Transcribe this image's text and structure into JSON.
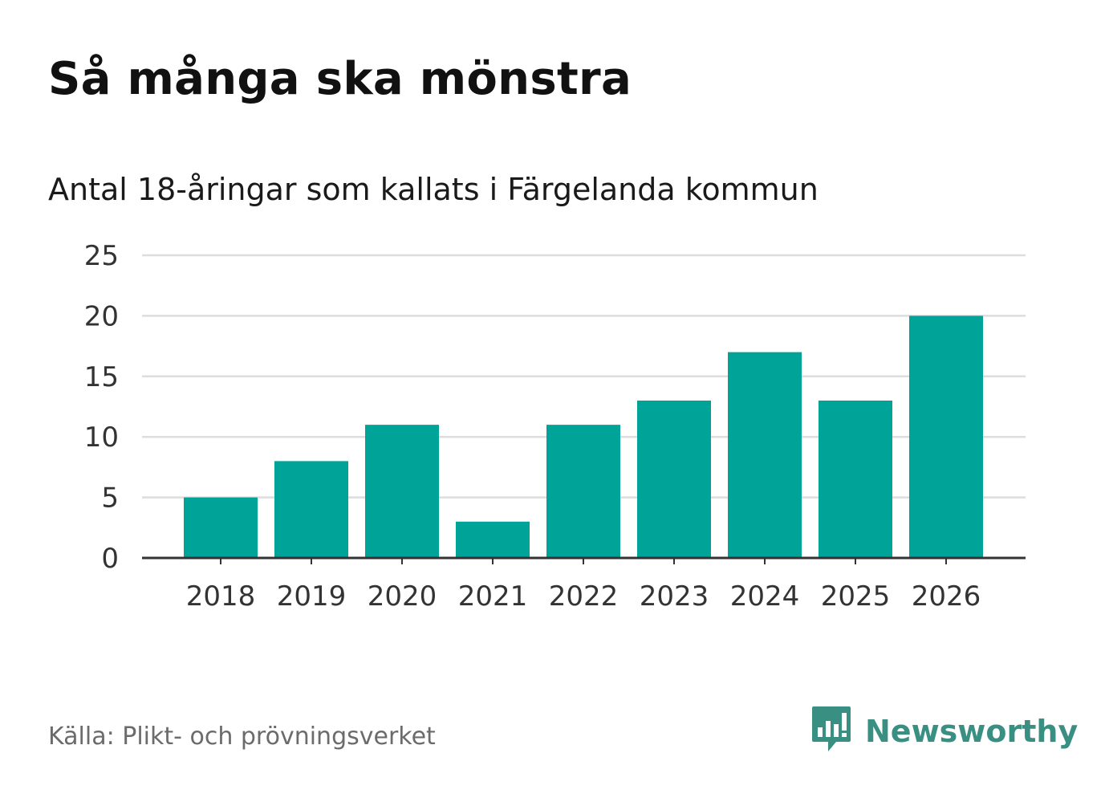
{
  "title": "Så många ska mönstra",
  "subtitle": "Antal 18-åringar som kallats i Färgelanda kommun",
  "source": "Källa: Plikt- och prövningsverket",
  "brand": {
    "name": "Newsworthy",
    "icon": "newsworthy-logo-icon",
    "color": "#3a8f83"
  },
  "chart_data": {
    "type": "bar",
    "title": "Så många ska mönstra",
    "subtitle": "Antal 18-åringar som kallats i Färgelanda kommun",
    "xlabel": "",
    "ylabel": "",
    "categories": [
      "2018",
      "2019",
      "2020",
      "2021",
      "2022",
      "2023",
      "2024",
      "2025",
      "2026"
    ],
    "values": [
      5,
      8,
      11,
      3,
      11,
      13,
      17,
      13,
      20
    ],
    "ylim": [
      0,
      25
    ],
    "yticks": [
      "0",
      "5",
      "10",
      "15",
      "20",
      "25"
    ],
    "grid": true,
    "bar_color": "#00a398",
    "grid_color": "#dddddd",
    "axis_color": "#333333"
  }
}
